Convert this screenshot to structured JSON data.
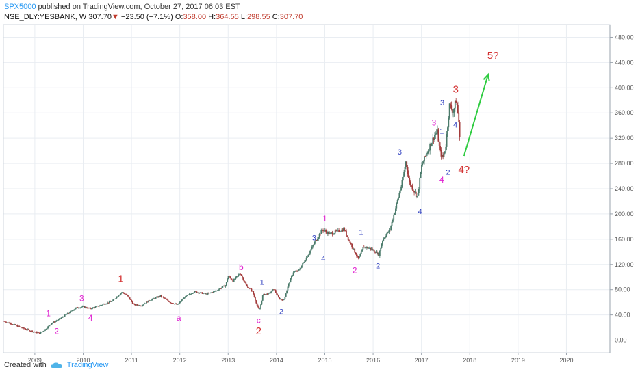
{
  "header": {
    "author": "SPX5000",
    "published_text": "published on TradingView.com, October 27, 2017 06:03 EST",
    "symbol": "NSE_DLY:YESBANK, W",
    "last": "307.70",
    "down_arrow": "▼",
    "change": "−23.50 (−7.1%)",
    "open_label": "O:",
    "open": "358.00",
    "high_label": "H:",
    "high": "364.55",
    "low_label": "L:",
    "low": "298.55",
    "close_label": "C:",
    "close": "307.70"
  },
  "footer": {
    "created_with": "Created with",
    "brand": "TradingView"
  },
  "colors": {
    "up": "#4a7a6a",
    "down": "#a33a3a",
    "grid": "#e9edf2",
    "price_line": "#d9534f",
    "arrow": "#2ecc40"
  },
  "chart_data": {
    "type": "line",
    "subtype": "weekly candlestick price chart with Elliott wave annotations",
    "x_axis": {
      "range": [
        2008.35,
        2020.9
      ],
      "ticks": [
        "2009",
        "2010",
        "2011",
        "2012",
        "2013",
        "2014",
        "2015",
        "2016",
        "2017",
        "2018",
        "2019",
        "2020"
      ]
    },
    "y_axis": {
      "range": [
        -20,
        500
      ],
      "side": "right",
      "ticks": [
        "0.00",
        "40.00",
        "80.00",
        "120.00",
        "160.00",
        "200.00",
        "240.00",
        "280.00",
        "320.00",
        "360.00",
        "400.00",
        "440.00",
        "480.00"
      ]
    },
    "grid": true,
    "current_price": 307.7,
    "price_path": [
      [
        2008.35,
        30
      ],
      [
        2008.55,
        25
      ],
      [
        2008.75,
        19
      ],
      [
        2008.95,
        14
      ],
      [
        2009.1,
        11
      ],
      [
        2009.2,
        16
      ],
      [
        2009.35,
        27
      ],
      [
        2009.5,
        33
      ],
      [
        2009.7,
        43
      ],
      [
        2009.85,
        51
      ],
      [
        2010.0,
        53
      ],
      [
        2010.15,
        50
      ],
      [
        2010.35,
        55
      ],
      [
        2010.6,
        62
      ],
      [
        2010.8,
        76
      ],
      [
        2010.9,
        72
      ],
      [
        2011.05,
        56
      ],
      [
        2011.2,
        55
      ],
      [
        2011.4,
        64
      ],
      [
        2011.6,
        70
      ],
      [
        2011.8,
        60
      ],
      [
        2011.95,
        56
      ],
      [
        2012.1,
        68
      ],
      [
        2012.3,
        77
      ],
      [
        2012.55,
        73
      ],
      [
        2012.75,
        78
      ],
      [
        2012.95,
        87
      ],
      [
        2013.0,
        102
      ],
      [
        2013.1,
        94
      ],
      [
        2013.25,
        106
      ],
      [
        2013.38,
        86
      ],
      [
        2013.5,
        78
      ],
      [
        2013.6,
        55
      ],
      [
        2013.65,
        47
      ],
      [
        2013.72,
        72
      ],
      [
        2013.85,
        74
      ],
      [
        2013.95,
        81
      ],
      [
        2014.05,
        66
      ],
      [
        2014.15,
        63
      ],
      [
        2014.25,
        88
      ],
      [
        2014.35,
        108
      ],
      [
        2014.45,
        109
      ],
      [
        2014.6,
        128
      ],
      [
        2014.8,
        156
      ],
      [
        2014.95,
        175
      ],
      [
        2015.1,
        168
      ],
      [
        2015.25,
        172
      ],
      [
        2015.4,
        176
      ],
      [
        2015.5,
        158
      ],
      [
        2015.62,
        140
      ],
      [
        2015.7,
        128
      ],
      [
        2015.8,
        148
      ],
      [
        2015.95,
        145
      ],
      [
        2016.05,
        140
      ],
      [
        2016.12,
        135
      ],
      [
        2016.2,
        160
      ],
      [
        2016.35,
        175
      ],
      [
        2016.5,
        220
      ],
      [
        2016.6,
        250
      ],
      [
        2016.68,
        284
      ],
      [
        2016.75,
        250
      ],
      [
        2016.85,
        236
      ],
      [
        2016.92,
        226
      ],
      [
        2017.0,
        275
      ],
      [
        2017.1,
        295
      ],
      [
        2017.2,
        312
      ],
      [
        2017.28,
        326
      ],
      [
        2017.33,
        330
      ],
      [
        2017.38,
        300
      ],
      [
        2017.44,
        288
      ],
      [
        2017.5,
        306
      ],
      [
        2017.58,
        372
      ],
      [
        2017.66,
        362
      ],
      [
        2017.72,
        382
      ],
      [
        2017.77,
        350
      ],
      [
        2017.8,
        308
      ]
    ],
    "annotations": [
      {
        "text": "1",
        "x": 2009.28,
        "y": 38,
        "color": "#e020d0",
        "size": 12
      },
      {
        "text": "2",
        "x": 2009.45,
        "y": 10,
        "color": "#e020d0",
        "size": 12
      },
      {
        "text": "3",
        "x": 2009.97,
        "y": 62,
        "color": "#e020d0",
        "size": 12
      },
      {
        "text": "4",
        "x": 2010.15,
        "y": 31,
        "color": "#e020d0",
        "size": 12
      },
      {
        "text": "1",
        "x": 2010.78,
        "y": 92,
        "color": "#d32f2f",
        "size": 15
      },
      {
        "text": "a",
        "x": 2011.98,
        "y": 31,
        "color": "#e020d0",
        "size": 12
      },
      {
        "text": "b",
        "x": 2013.27,
        "y": 111,
        "color": "#e020d0",
        "size": 12
      },
      {
        "text": "1",
        "x": 2013.7,
        "y": 88,
        "color": "#3040c0",
        "size": 11
      },
      {
        "text": "c",
        "x": 2013.63,
        "y": 27,
        "color": "#e020d0",
        "size": 12
      },
      {
        "text": "2",
        "x": 2013.63,
        "y": 9,
        "color": "#d32f2f",
        "size": 15
      },
      {
        "text": "2",
        "x": 2014.1,
        "y": 41,
        "color": "#3040c0",
        "size": 11
      },
      {
        "text": "3",
        "x": 2014.78,
        "y": 158,
        "color": "#3040c0",
        "size": 11
      },
      {
        "text": "4",
        "x": 2014.97,
        "y": 125,
        "color": "#3040c0",
        "size": 11
      },
      {
        "text": "1",
        "x": 2015.0,
        "y": 188,
        "color": "#e020d0",
        "size": 12
      },
      {
        "text": "1",
        "x": 2015.75,
        "y": 167,
        "color": "#3040c0",
        "size": 11
      },
      {
        "text": "2",
        "x": 2015.62,
        "y": 106,
        "color": "#e020d0",
        "size": 12
      },
      {
        "text": "2",
        "x": 2016.1,
        "y": 114,
        "color": "#3040c0",
        "size": 11
      },
      {
        "text": "3",
        "x": 2016.55,
        "y": 294,
        "color": "#3040c0",
        "size": 11
      },
      {
        "text": "4",
        "x": 2016.97,
        "y": 200,
        "color": "#3040c0",
        "size": 11
      },
      {
        "text": "3",
        "x": 2017.26,
        "y": 340,
        "color": "#e020d0",
        "size": 12
      },
      {
        "text": "1",
        "x": 2017.42,
        "y": 327,
        "color": "#3040c0",
        "size": 11
      },
      {
        "text": "4",
        "x": 2017.42,
        "y": 250,
        "color": "#e020d0",
        "size": 12
      },
      {
        "text": "3",
        "x": 2017.43,
        "y": 372,
        "color": "#3040c0",
        "size": 11
      },
      {
        "text": "2",
        "x": 2017.55,
        "y": 262,
        "color": "#3040c0",
        "size": 11
      },
      {
        "text": "4",
        "x": 2017.7,
        "y": 337,
        "color": "#3040c0",
        "size": 11
      },
      {
        "text": "3",
        "x": 2017.71,
        "y": 392,
        "color": "#d32f2f",
        "size": 15
      },
      {
        "text": "4?",
        "x": 2017.88,
        "y": 265,
        "color": "#d32f2f",
        "size": 15
      },
      {
        "text": "5?",
        "x": 2018.48,
        "y": 446,
        "color": "#d32f2f",
        "size": 15
      }
    ],
    "projection_arrow": {
      "from": [
        2017.88,
        292
      ],
      "to": [
        2018.38,
        421
      ]
    }
  }
}
